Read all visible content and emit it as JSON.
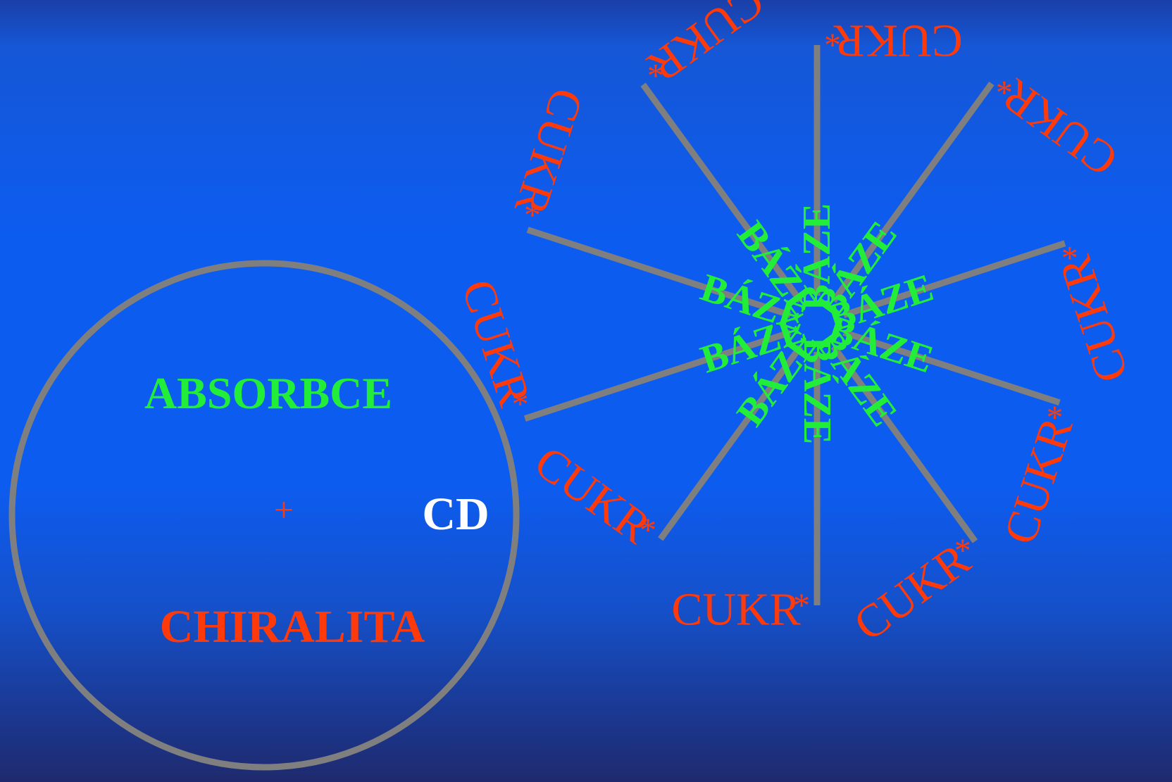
{
  "left_diagram": {
    "absorbce": "ABSORBCE",
    "plus": "+",
    "chiralita": "CHIRALITA",
    "cd": "CD"
  },
  "right_diagram": {
    "sugar_label": "CUKR",
    "star": "*",
    "base_label": "BÁZE",
    "spoke_count": 10
  }
}
